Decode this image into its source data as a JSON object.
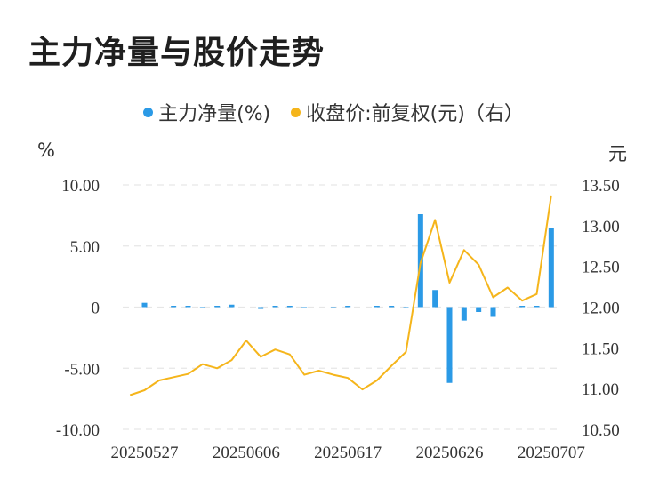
{
  "chart_data": {
    "type": "bar+line",
    "title": "主力净量与股价走势",
    "legend": {
      "placement": "top-center",
      "items": [
        {
          "label": "主力净量(%)",
          "color": "#2b9ae6"
        },
        {
          "label": "收盘价:前复权(元)（右）",
          "color": "#f5b51b"
        }
      ]
    },
    "y_left": {
      "unit": "%",
      "ticks": [
        "10.00",
        "5.00",
        "0",
        "-5.00",
        "-10.00"
      ],
      "range": [
        -10,
        10
      ]
    },
    "y_right": {
      "unit": "元",
      "ticks": [
        "13.50",
        "13.00",
        "12.50",
        "12.00",
        "11.50",
        "11.00",
        "10.50"
      ],
      "range": [
        10.5,
        13.5
      ]
    },
    "x_tick_labels": [
      {
        "index": 1,
        "label": "20250527"
      },
      {
        "index": 8,
        "label": "20250606"
      },
      {
        "index": 15,
        "label": "20250617"
      },
      {
        "index": 22,
        "label": "20250626"
      },
      {
        "index": 29,
        "label": "20250707"
      }
    ],
    "grid": true,
    "series": [
      {
        "name": "主力净量(%)",
        "kind": "bar",
        "axis": "left",
        "color": "#2b9ae6",
        "values": [
          0,
          0.35,
          0,
          0.1,
          0.05,
          -0.1,
          0.1,
          0.2,
          0,
          -0.15,
          0.05,
          0.05,
          -0.05,
          0,
          -0.1,
          0.05,
          0,
          0.05,
          0.05,
          -0.05,
          7.6,
          1.4,
          -6.2,
          -1.1,
          -0.4,
          -0.8,
          0,
          0.05,
          0.1,
          6.5
        ]
      },
      {
        "name": "收盘价:前复权(元)（右）",
        "kind": "line",
        "axis": "right",
        "color": "#f5b51b",
        "values": [
          10.92,
          10.98,
          11.1,
          11.14,
          11.18,
          11.3,
          11.25,
          11.35,
          11.59,
          11.39,
          11.48,
          11.42,
          11.17,
          11.22,
          11.17,
          11.13,
          10.99,
          11.1,
          11.28,
          11.45,
          12.54,
          13.07,
          12.3,
          12.7,
          12.52,
          12.12,
          12.24,
          12.08,
          12.16,
          13.37
        ]
      }
    ]
  }
}
